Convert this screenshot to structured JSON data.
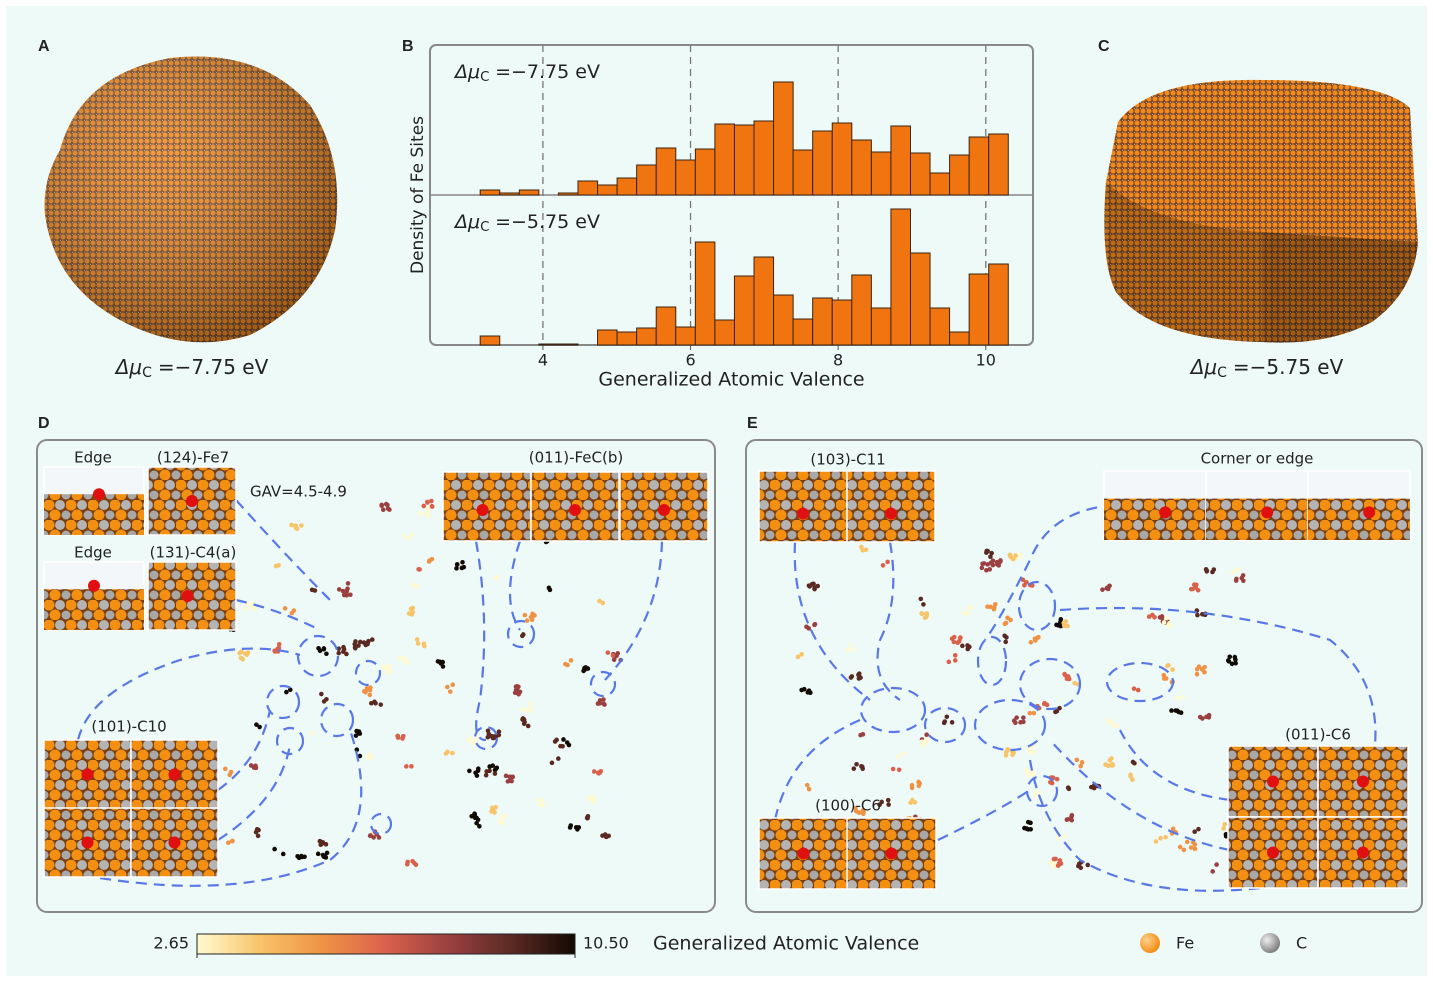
{
  "panels": {
    "a": {
      "label": "A",
      "caption": {
        "symbol": "Δμ",
        "subscript": "C",
        "text": "=−7.75 eV"
      }
    },
    "b": {
      "label": "B"
    },
    "c": {
      "label": "C",
      "caption": {
        "symbol": "Δμ",
        "subscript": "C",
        "text": "=−5.75 eV"
      }
    },
    "d": {
      "label": "D",
      "note": "GAV=4.5-4.9",
      "insets": [
        "Edge",
        "(124)-Fe7",
        "Edge",
        "(131)-C4(a)",
        "(011)-FeC(b)",
        "(101)-C10"
      ]
    },
    "e": {
      "label": "E",
      "insets": [
        "(103)-C11",
        "Corner or edge",
        "(011)-C6",
        "(100)-C6"
      ]
    }
  },
  "chart_data": {
    "type": "histogram",
    "xlabel": "Generalized Atomic Valence",
    "ylabel": "Density of Fe Sites",
    "color": "#f07510",
    "grid": true,
    "bins": [
      3.15,
      3.415,
      3.68,
      3.945,
      4.21,
      4.475,
      4.74,
      5.005,
      5.27,
      5.535,
      5.8,
      6.065,
      6.33,
      6.595,
      6.86,
      7.125,
      7.39,
      7.655,
      7.92,
      8.185,
      8.45,
      8.715,
      8.98,
      9.245,
      9.51,
      9.775,
      10.04,
      10.305
    ],
    "xlim": [
      2.47,
      10.64
    ],
    "xticks": [
      4,
      6,
      8,
      10
    ],
    "panels": [
      {
        "annotation": {
          "symbol": "Δμ",
          "subscript": "C",
          "text": "=−7.75 eV"
        },
        "ylim": [
          0,
          150
        ],
        "values": [
          5,
          2,
          5,
          0,
          2,
          14,
          10,
          17,
          30,
          47,
          35,
          46,
          71,
          70,
          74,
          113,
          45,
          64,
          72,
          55,
          43,
          69,
          42,
          22,
          40,
          58,
          61
        ]
      },
      {
        "annotation": {
          "symbol": "Δμ",
          "subscript": "C",
          "text": "=−5.75 eV"
        },
        "ylim": [
          0,
          150
        ],
        "values": [
          9,
          0,
          0,
          1,
          1,
          0,
          15,
          13,
          17,
          38,
          18,
          103,
          25,
          69,
          88,
          50,
          26,
          47,
          45,
          70,
          37,
          136,
          92,
          37,
          13,
          71,
          81
        ]
      }
    ]
  },
  "colorbar": {
    "title": "Generalized Atomic Valence",
    "ticks": [
      2.65,
      {
        "value": 10.5,
        "label": "10.50"
      }
    ],
    "colors": [
      "#fffad2",
      "#f8c46a",
      "#ef9245",
      "#d9614c",
      "#9b4040",
      "#5a2a22",
      "#120a04"
    ]
  },
  "legend": [
    {
      "name": "Fe",
      "color": "#f5901e"
    },
    {
      "name": "C",
      "color": "#9c9c9c"
    }
  ]
}
